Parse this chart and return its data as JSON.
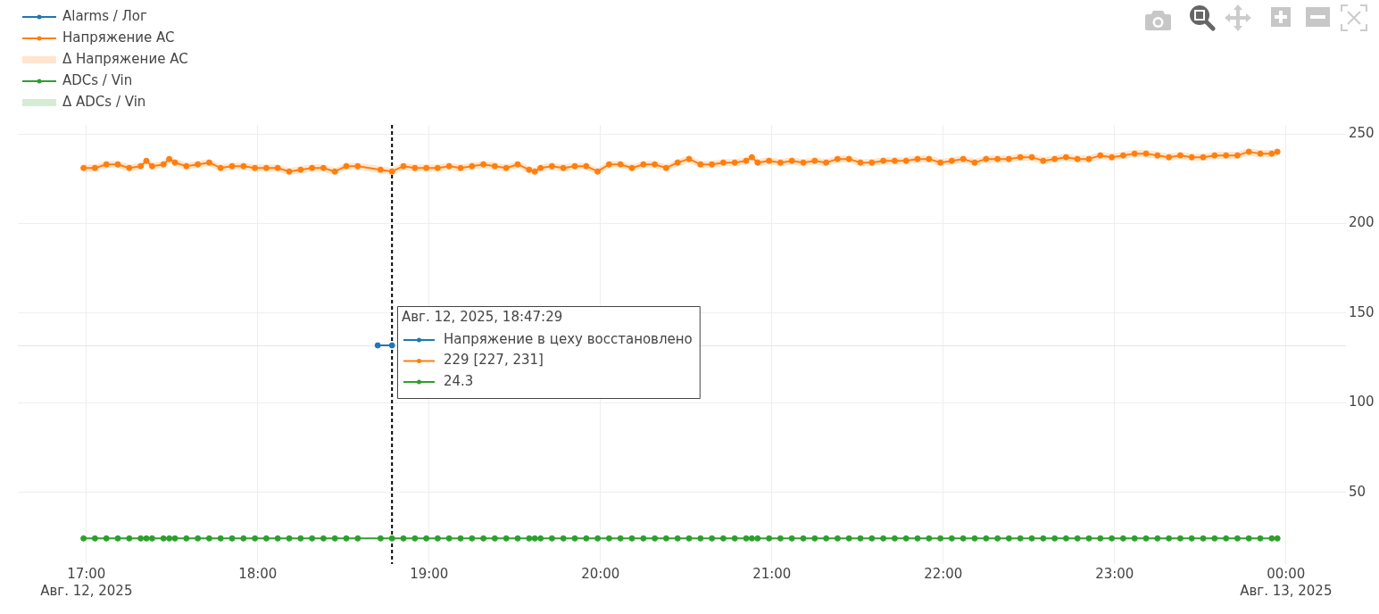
{
  "chart_data": {
    "type": "line",
    "x": [
      "2025-08-12T16:59",
      "2025-08-12T17:03",
      "2025-08-12T17:07",
      "2025-08-12T17:11",
      "2025-08-12T17:15",
      "2025-08-12T17:19",
      "2025-08-12T17:21",
      "2025-08-12T17:23",
      "2025-08-12T17:27",
      "2025-08-12T17:29",
      "2025-08-12T17:31",
      "2025-08-12T17:35",
      "2025-08-12T17:39",
      "2025-08-12T17:43",
      "2025-08-12T17:47",
      "2025-08-12T17:51",
      "2025-08-12T17:55",
      "2025-08-12T17:59",
      "2025-08-12T18:03",
      "2025-08-12T18:07",
      "2025-08-12T18:11",
      "2025-08-12T18:15",
      "2025-08-12T18:19",
      "2025-08-12T18:23",
      "2025-08-12T18:27",
      "2025-08-12T18:31",
      "2025-08-12T18:35",
      "2025-08-12T18:43",
      "2025-08-12T18:47",
      "2025-08-12T18:51",
      "2025-08-12T18:55",
      "2025-08-12T18:59",
      "2025-08-12T19:03",
      "2025-08-12T19:07",
      "2025-08-12T19:11",
      "2025-08-12T19:15",
      "2025-08-12T19:19",
      "2025-08-12T19:23",
      "2025-08-12T19:27",
      "2025-08-12T19:31",
      "2025-08-12T19:35",
      "2025-08-12T19:37",
      "2025-08-12T19:39",
      "2025-08-12T19:43",
      "2025-08-12T19:47",
      "2025-08-12T19:51",
      "2025-08-12T19:55",
      "2025-08-12T19:59",
      "2025-08-12T20:03",
      "2025-08-12T20:07",
      "2025-08-12T20:11",
      "2025-08-12T20:15",
      "2025-08-12T20:19",
      "2025-08-12T20:23",
      "2025-08-12T20:27",
      "2025-08-12T20:31",
      "2025-08-12T20:35",
      "2025-08-12T20:39",
      "2025-08-12T20:43",
      "2025-08-12T20:47",
      "2025-08-12T20:51",
      "2025-08-12T20:53",
      "2025-08-12T20:55",
      "2025-08-12T20:59",
      "2025-08-12T21:03",
      "2025-08-12T21:07",
      "2025-08-12T21:11",
      "2025-08-12T21:15",
      "2025-08-12T21:19",
      "2025-08-12T21:23",
      "2025-08-12T21:27",
      "2025-08-12T21:31",
      "2025-08-12T21:35",
      "2025-08-12T21:39",
      "2025-08-12T21:43",
      "2025-08-12T21:47",
      "2025-08-12T21:51",
      "2025-08-12T21:55",
      "2025-08-12T21:59",
      "2025-08-12T22:03",
      "2025-08-12T22:07",
      "2025-08-12T22:11",
      "2025-08-12T22:15",
      "2025-08-12T22:19",
      "2025-08-12T22:23",
      "2025-08-12T22:27",
      "2025-08-12T22:31",
      "2025-08-12T22:35",
      "2025-08-12T22:39",
      "2025-08-12T22:43",
      "2025-08-12T22:47",
      "2025-08-12T22:51",
      "2025-08-12T22:55",
      "2025-08-12T22:59",
      "2025-08-12T23:03",
      "2025-08-12T23:07",
      "2025-08-12T23:11",
      "2025-08-12T23:15",
      "2025-08-12T23:19",
      "2025-08-12T23:23",
      "2025-08-12T23:27",
      "2025-08-12T23:31",
      "2025-08-12T23:35",
      "2025-08-12T23:39",
      "2025-08-12T23:43",
      "2025-08-12T23:47",
      "2025-08-12T23:51",
      "2025-08-12T23:55",
      "2025-08-12T23:57"
    ],
    "series": [
      {
        "name": "Alarms / Лог",
        "color": "#1f77b4",
        "x": [
          "2025-08-12T18:42",
          "2025-08-12T18:47"
        ],
        "values": [
          132,
          132
        ]
      },
      {
        "name": "Напряжение AC",
        "color": "#ff7f0e",
        "values": [
          231,
          231,
          233,
          233,
          231,
          232,
          235,
          232,
          233,
          236,
          234,
          232,
          233,
          234,
          231,
          232,
          232,
          231,
          231,
          231,
          229,
          230,
          231,
          231,
          229,
          232,
          232,
          230,
          229,
          232,
          231,
          231,
          231,
          232,
          231,
          232,
          233,
          232,
          231,
          233,
          230,
          229,
          231,
          232,
          231,
          232,
          232,
          229,
          233,
          233,
          231,
          233,
          233,
          231,
          234,
          236,
          233,
          233,
          234,
          234,
          235,
          237,
          234,
          235,
          234,
          235,
          234,
          235,
          234,
          236,
          236,
          234,
          234,
          235,
          235,
          235,
          236,
          236,
          234,
          235,
          236,
          234,
          236,
          236,
          236,
          237,
          237,
          235,
          236,
          237,
          236,
          236,
          238,
          237,
          238,
          239,
          239,
          238,
          237,
          238,
          237,
          237,
          238,
          238,
          238,
          240,
          239,
          239,
          240
        ],
        "lower": [
          229,
          229,
          231,
          231,
          229,
          230,
          233,
          230,
          231,
          234,
          232,
          230,
          231,
          232,
          229,
          230,
          230,
          229,
          229,
          229,
          227,
          228,
          229,
          229,
          227,
          230,
          230,
          228,
          227,
          230,
          229,
          229,
          229,
          230,
          229,
          230,
          231,
          230,
          229,
          231,
          228,
          227,
          229,
          230,
          229,
          230,
          230,
          227,
          231,
          231,
          229,
          231,
          231,
          229,
          232,
          234,
          231,
          231,
          232,
          232,
          233,
          235,
          232,
          233,
          232,
          233,
          232,
          233,
          232,
          234,
          234,
          232,
          232,
          233,
          233,
          233,
          234,
          234,
          232,
          233,
          234,
          232,
          234,
          234,
          234,
          235,
          235,
          233,
          234,
          235,
          234,
          234,
          236,
          235,
          236,
          237,
          237,
          236,
          235,
          236,
          235,
          235,
          236,
          236,
          236,
          238,
          237,
          237,
          238
        ],
        "upper": [
          233,
          233,
          235,
          235,
          233,
          234,
          237,
          234,
          235,
          238,
          236,
          234,
          235,
          236,
          233,
          234,
          234,
          233,
          233,
          233,
          231,
          232,
          233,
          233,
          231,
          234,
          234,
          232,
          231,
          234,
          233,
          233,
          233,
          234,
          233,
          234,
          235,
          234,
          233,
          235,
          232,
          231,
          233,
          234,
          233,
          234,
          234,
          231,
          235,
          235,
          233,
          235,
          235,
          233,
          236,
          238,
          235,
          235,
          236,
          236,
          237,
          239,
          236,
          237,
          236,
          237,
          236,
          237,
          236,
          238,
          238,
          236,
          236,
          237,
          237,
          237,
          238,
          238,
          236,
          237,
          238,
          236,
          238,
          238,
          238,
          239,
          239,
          237,
          238,
          239,
          238,
          238,
          240,
          239,
          240,
          241,
          241,
          240,
          239,
          240,
          239,
          239,
          240,
          240,
          240,
          242,
          241,
          241,
          242
        ]
      },
      {
        "name": "Δ Напряжение AC",
        "type": "area",
        "color": "#ffe5cf",
        "values": [
          null,
          null,
          null,
          null,
          null,
          null,
          null,
          null,
          null,
          null,
          null,
          null,
          null,
          null,
          null,
          null,
          null,
          null,
          null,
          null,
          null,
          null,
          null,
          null,
          null,
          null,
          null,
          null,
          null,
          null,
          null,
          null,
          null,
          null,
          null,
          null,
          null,
          null,
          null,
          null,
          null,
          null,
          null,
          null,
          null,
          null,
          null,
          null,
          null,
          null,
          null,
          null,
          null,
          null,
          null,
          null,
          null,
          null,
          null,
          null,
          null,
          null,
          null,
          null,
          null,
          null,
          null,
          null,
          null,
          null,
          null,
          null,
          null,
          null,
          null,
          null,
          null,
          null,
          null,
          null,
          null,
          null,
          null,
          null,
          null,
          null,
          null,
          null,
          null,
          null,
          null,
          null,
          null,
          null,
          null,
          null,
          null,
          null,
          null,
          null,
          null,
          null,
          null,
          null,
          null,
          null,
          null,
          null,
          null
        ]
      },
      {
        "name": "ADCs / Vin",
        "color": "#2ca02c",
        "values": [
          24.3,
          24.3,
          24.3,
          24.3,
          24.3,
          24.3,
          24.3,
          24.3,
          24.3,
          24.3,
          24.3,
          24.3,
          24.3,
          24.3,
          24.3,
          24.3,
          24.3,
          24.3,
          24.3,
          24.3,
          24.3,
          24.3,
          24.3,
          24.3,
          24.3,
          24.3,
          24.3,
          24.3,
          24.3,
          24.3,
          24.3,
          24.3,
          24.3,
          24.3,
          24.3,
          24.3,
          24.3,
          24.3,
          24.3,
          24.3,
          24.3,
          24.3,
          24.3,
          24.3,
          24.3,
          24.3,
          24.3,
          24.3,
          24.3,
          24.3,
          24.3,
          24.3,
          24.3,
          24.3,
          24.3,
          24.3,
          24.3,
          24.3,
          24.3,
          24.3,
          24.3,
          24.3,
          24.3,
          24.3,
          24.3,
          24.3,
          24.3,
          24.3,
          24.3,
          24.3,
          24.3,
          24.3,
          24.3,
          24.3,
          24.3,
          24.3,
          24.3,
          24.3,
          24.3,
          24.3,
          24.3,
          24.3,
          24.3,
          24.3,
          24.3,
          24.3,
          24.3,
          24.3,
          24.3,
          24.3,
          24.3,
          24.3,
          24.3,
          24.3,
          24.3,
          24.3,
          24.3,
          24.3,
          24.3,
          24.3,
          24.3,
          24.3,
          24.3,
          24.3,
          24.3,
          24.3,
          24.3,
          24.3,
          24.3
        ]
      },
      {
        "name": "Δ ADCs / Vin",
        "type": "area",
        "color": "#d5ecd5",
        "values": [
          null,
          null,
          null,
          null,
          null,
          null,
          null,
          null,
          null,
          null,
          null,
          null,
          null,
          null,
          null,
          null,
          null,
          null,
          null,
          null,
          null,
          null,
          null,
          null,
          null,
          null,
          null,
          null,
          null,
          null,
          null,
          null,
          null,
          null,
          null,
          null,
          null,
          null,
          null,
          null,
          null,
          null,
          null,
          null,
          null,
          null,
          null,
          null,
          null,
          null,
          null,
          null,
          null,
          null,
          null,
          null,
          null,
          null,
          null,
          null,
          null,
          null,
          null,
          null,
          null,
          null,
          null,
          null,
          null,
          null,
          null,
          null,
          null,
          null,
          null,
          null,
          null,
          null,
          null,
          null,
          null,
          null,
          null,
          null,
          null,
          null,
          null,
          null,
          null,
          null,
          null,
          null,
          null,
          null,
          null,
          null,
          null,
          null,
          null,
          null,
          null,
          null,
          null,
          null,
          null,
          null,
          null,
          null,
          null
        ]
      }
    ],
    "xlim": [
      "2025-08-12T16:36",
      "2025-08-13T00:21"
    ],
    "xticks": [
      {
        "value": "2025-08-12T17:00",
        "label": "17:00\nАвг. 12, 2025"
      },
      {
        "value": "2025-08-12T18:00",
        "label": "18:00"
      },
      {
        "value": "2025-08-12T19:00",
        "label": "19:00"
      },
      {
        "value": "2025-08-12T20:00",
        "label": "20:00"
      },
      {
        "value": "2025-08-12T21:00",
        "label": "21:00"
      },
      {
        "value": "2025-08-12T22:00",
        "label": "22:00"
      },
      {
        "value": "2025-08-12T23:00",
        "label": "23:00"
      },
      {
        "value": "2025-08-13T00:00",
        "label": "00:00\nАвг. 13, 2025"
      }
    ],
    "ylim": [
      10,
      255
    ],
    "yticks": [
      50,
      100,
      150,
      200,
      250
    ],
    "grid": true,
    "legend": "top left",
    "marker": "circle",
    "ref_lines": [
      {
        "axis": "x",
        "value": "2025-08-12T18:47",
        "color": "#000000",
        "line_style": "dashed"
      },
      {
        "axis": "y",
        "value": 132,
        "color": "#e5e5e5"
      }
    ],
    "annotations": [
      "Авг. 12, 2025, 18:47:29",
      "Напряжение в цеху восстановлено",
      "229 [227, 231]",
      "24.3"
    ]
  }
}
